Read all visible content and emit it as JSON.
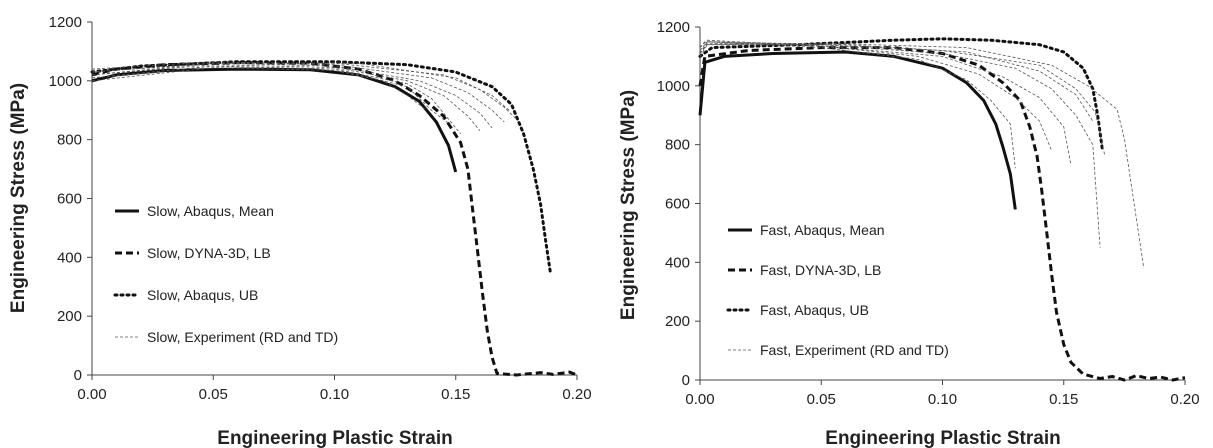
{
  "chart_data": [
    {
      "type": "line",
      "xlabel": "Engineering Plastic Strain",
      "ylabel": "Engineering Stress (MPa)",
      "xlim": [
        0,
        0.2
      ],
      "ylim": [
        0,
        1200
      ],
      "x_ticks": [
        "0.00",
        "0.05",
        "0.10",
        "0.15",
        "0.20"
      ],
      "y_ticks": [
        "0",
        "200",
        "400",
        "600",
        "800",
        "1000",
        "1200"
      ],
      "grid": false,
      "legend_position": "center-left",
      "series": [
        {
          "name": "Slow, Abaqus, Mean",
          "style": "solid",
          "points": [
            [
              0,
              1000
            ],
            [
              0.01,
              1020
            ],
            [
              0.03,
              1035
            ],
            [
              0.06,
              1040
            ],
            [
              0.09,
              1038
            ],
            [
              0.11,
              1020
            ],
            [
              0.125,
              980
            ],
            [
              0.135,
              930
            ],
            [
              0.142,
              860
            ],
            [
              0.147,
              780
            ],
            [
              0.15,
              690
            ]
          ]
        },
        {
          "name": "Slow, DYNA-3D, LB",
          "style": "dashed",
          "points": [
            [
              0,
              1020
            ],
            [
              0.01,
              1040
            ],
            [
              0.03,
              1055
            ],
            [
              0.06,
              1062
            ],
            [
              0.09,
              1060
            ],
            [
              0.11,
              1040
            ],
            [
              0.125,
              1000
            ],
            [
              0.135,
              950
            ],
            [
              0.145,
              880
            ],
            [
              0.152,
              790
            ],
            [
              0.155,
              700
            ],
            [
              0.157,
              560
            ],
            [
              0.159,
              420
            ],
            [
              0.161,
              280
            ],
            [
              0.163,
              150
            ],
            [
              0.165,
              60
            ],
            [
              0.167,
              5
            ],
            [
              0.175,
              0
            ],
            [
              0.185,
              8
            ],
            [
              0.19,
              2
            ],
            [
              0.197,
              10
            ],
            [
              0.2,
              0
            ]
          ]
        },
        {
          "name": "Slow, Abaqus, UB",
          "style": "dotted",
          "points": [
            [
              0,
              1030
            ],
            [
              0.02,
              1050
            ],
            [
              0.06,
              1065
            ],
            [
              0.1,
              1065
            ],
            [
              0.13,
              1055
            ],
            [
              0.15,
              1030
            ],
            [
              0.165,
              980
            ],
            [
              0.173,
              920
            ],
            [
              0.178,
              820
            ],
            [
              0.182,
              700
            ],
            [
              0.185,
              580
            ],
            [
              0.187,
              460
            ],
            [
              0.189,
              350
            ]
          ]
        },
        {
          "name": "Slow, Experiment (RD and TD)",
          "style": "thin-dash",
          "curves": [
            [
              [
                0,
                1010
              ],
              [
                0.05,
                1050
              ],
              [
                0.1,
                1040
              ],
              [
                0.13,
                990
              ],
              [
                0.14,
                940
              ],
              [
                0.148,
                860
              ],
              [
                0.152,
                820
              ]
            ],
            [
              [
                0,
                1020
              ],
              [
                0.05,
                1055
              ],
              [
                0.1,
                1045
              ],
              [
                0.13,
                1000
              ],
              [
                0.145,
                950
              ],
              [
                0.155,
                880
              ],
              [
                0.16,
                830
              ]
            ],
            [
              [
                0,
                1030
              ],
              [
                0.05,
                1060
              ],
              [
                0.1,
                1050
              ],
              [
                0.135,
                1000
              ],
              [
                0.15,
                950
              ],
              [
                0.16,
                890
              ],
              [
                0.165,
                840
              ]
            ],
            [
              [
                0,
                1040
              ],
              [
                0.05,
                1065
              ],
              [
                0.1,
                1055
              ],
              [
                0.14,
                1010
              ],
              [
                0.155,
                960
              ],
              [
                0.165,
                900
              ],
              [
                0.17,
                860
              ]
            ],
            [
              [
                0,
                1020
              ],
              [
                0.05,
                1060
              ],
              [
                0.1,
                1060
              ],
              [
                0.145,
                1020
              ],
              [
                0.16,
                970
              ],
              [
                0.17,
                910
              ],
              [
                0.175,
                870
              ]
            ],
            [
              [
                0,
                1030
              ],
              [
                0.05,
                1060
              ],
              [
                0.11,
                1060
              ],
              [
                0.15,
                1010
              ],
              [
                0.165,
                950
              ],
              [
                0.172,
                900
              ]
            ],
            [
              [
                0,
                1010
              ],
              [
                0.05,
                1050
              ],
              [
                0.1,
                1040
              ],
              [
                0.13,
                980
              ],
              [
                0.14,
                900
              ],
              [
                0.148,
                850
              ]
            ],
            [
              [
                0,
                1000
              ],
              [
                0.05,
                1045
              ],
              [
                0.1,
                1035
              ],
              [
                0.12,
                1000
              ],
              [
                0.13,
                950
              ],
              [
                0.138,
                900
              ]
            ]
          ]
        }
      ]
    },
    {
      "type": "line",
      "xlabel": "Engineering Plastic Strain",
      "ylabel": "Engineering Stress (MPa)",
      "xlim": [
        0,
        0.2
      ],
      "ylim": [
        0,
        1200
      ],
      "x_ticks": [
        "0.00",
        "0.05",
        "0.10",
        "0.15",
        "0.20"
      ],
      "y_ticks": [
        "0",
        "200",
        "400",
        "600",
        "800",
        "1000",
        "1200"
      ],
      "grid": false,
      "legend_position": "center-left",
      "series": [
        {
          "name": "Fast, Abaqus, Mean",
          "style": "solid",
          "points": [
            [
              0,
              900
            ],
            [
              0.002,
              1080
            ],
            [
              0.01,
              1100
            ],
            [
              0.03,
              1110
            ],
            [
              0.06,
              1115
            ],
            [
              0.08,
              1100
            ],
            [
              0.1,
              1060
            ],
            [
              0.11,
              1010
            ],
            [
              0.117,
              950
            ],
            [
              0.122,
              870
            ],
            [
              0.125,
              790
            ],
            [
              0.128,
              700
            ],
            [
              0.13,
              580
            ]
          ]
        },
        {
          "name": "Fast, DYNA-3D, LB",
          "style": "dashed",
          "points": [
            [
              0,
              1000
            ],
            [
              0.002,
              1100
            ],
            [
              0.02,
              1120
            ],
            [
              0.05,
              1130
            ],
            [
              0.08,
              1130
            ],
            [
              0.1,
              1110
            ],
            [
              0.115,
              1070
            ],
            [
              0.125,
              1010
            ],
            [
              0.132,
              950
            ],
            [
              0.136,
              860
            ],
            [
              0.139,
              760
            ],
            [
              0.141,
              640
            ],
            [
              0.143,
              500
            ],
            [
              0.145,
              360
            ],
            [
              0.147,
              230
            ],
            [
              0.15,
              120
            ],
            [
              0.153,
              60
            ],
            [
              0.158,
              20
            ],
            [
              0.165,
              5
            ],
            [
              0.17,
              12
            ],
            [
              0.175,
              0
            ],
            [
              0.18,
              15
            ],
            [
              0.185,
              5
            ],
            [
              0.19,
              10
            ],
            [
              0.195,
              0
            ],
            [
              0.2,
              8
            ]
          ]
        },
        {
          "name": "Fast, Abaqus, UB",
          "style": "dotted",
          "points": [
            [
              0,
              1100
            ],
            [
              0.005,
              1130
            ],
            [
              0.04,
              1140
            ],
            [
              0.08,
              1155
            ],
            [
              0.1,
              1160
            ],
            [
              0.12,
              1155
            ],
            [
              0.14,
              1140
            ],
            [
              0.15,
              1115
            ],
            [
              0.158,
              1060
            ],
            [
              0.162,
              990
            ],
            [
              0.164,
              900
            ],
            [
              0.166,
              780
            ]
          ]
        },
        {
          "name": "Fast, Experiment (RD and TD)",
          "style": "thin-dash",
          "curves": [
            [
              [
                0,
                1130
              ],
              [
                0.002,
                1150
              ],
              [
                0.05,
                1130
              ],
              [
                0.09,
                1090
              ],
              [
                0.11,
                1020
              ],
              [
                0.12,
                950
              ],
              [
                0.128,
                870
              ],
              [
                0.13,
                720
              ]
            ],
            [
              [
                0,
                1130
              ],
              [
                0.003,
                1155
              ],
              [
                0.05,
                1135
              ],
              [
                0.09,
                1100
              ],
              [
                0.115,
                1040
              ],
              [
                0.13,
                960
              ],
              [
                0.14,
                880
              ],
              [
                0.145,
                780
              ]
            ],
            [
              [
                0,
                1120
              ],
              [
                0.003,
                1150
              ],
              [
                0.05,
                1135
              ],
              [
                0.1,
                1100
              ],
              [
                0.125,
                1030
              ],
              [
                0.14,
                960
              ],
              [
                0.15,
                860
              ],
              [
                0.153,
                730
              ]
            ],
            [
              [
                0,
                1110
              ],
              [
                0.003,
                1140
              ],
              [
                0.05,
                1140
              ],
              [
                0.1,
                1110
              ],
              [
                0.13,
                1060
              ],
              [
                0.145,
                990
              ],
              [
                0.155,
                900
              ],
              [
                0.162,
                800
              ],
              [
                0.165,
                450
              ]
            ],
            [
              [
                0,
                1110
              ],
              [
                0.003,
                1145
              ],
              [
                0.05,
                1140
              ],
              [
                0.1,
                1120
              ],
              [
                0.14,
                1070
              ],
              [
                0.155,
                990
              ],
              [
                0.163,
                910
              ],
              [
                0.167,
                760
              ]
            ],
            [
              [
                0,
                1100
              ],
              [
                0.003,
                1140
              ],
              [
                0.05,
                1145
              ],
              [
                0.11,
                1130
              ],
              [
                0.145,
                1070
              ],
              [
                0.16,
                1000
              ],
              [
                0.172,
                920
              ],
              [
                0.175,
                820
              ],
              [
                0.183,
                380
              ]
            ],
            [
              [
                0,
                1110
              ],
              [
                0.003,
                1150
              ],
              [
                0.06,
                1140
              ],
              [
                0.11,
                1115
              ],
              [
                0.14,
                1050
              ],
              [
                0.155,
                970
              ],
              [
                0.162,
                880
              ]
            ]
          ]
        }
      ]
    }
  ]
}
